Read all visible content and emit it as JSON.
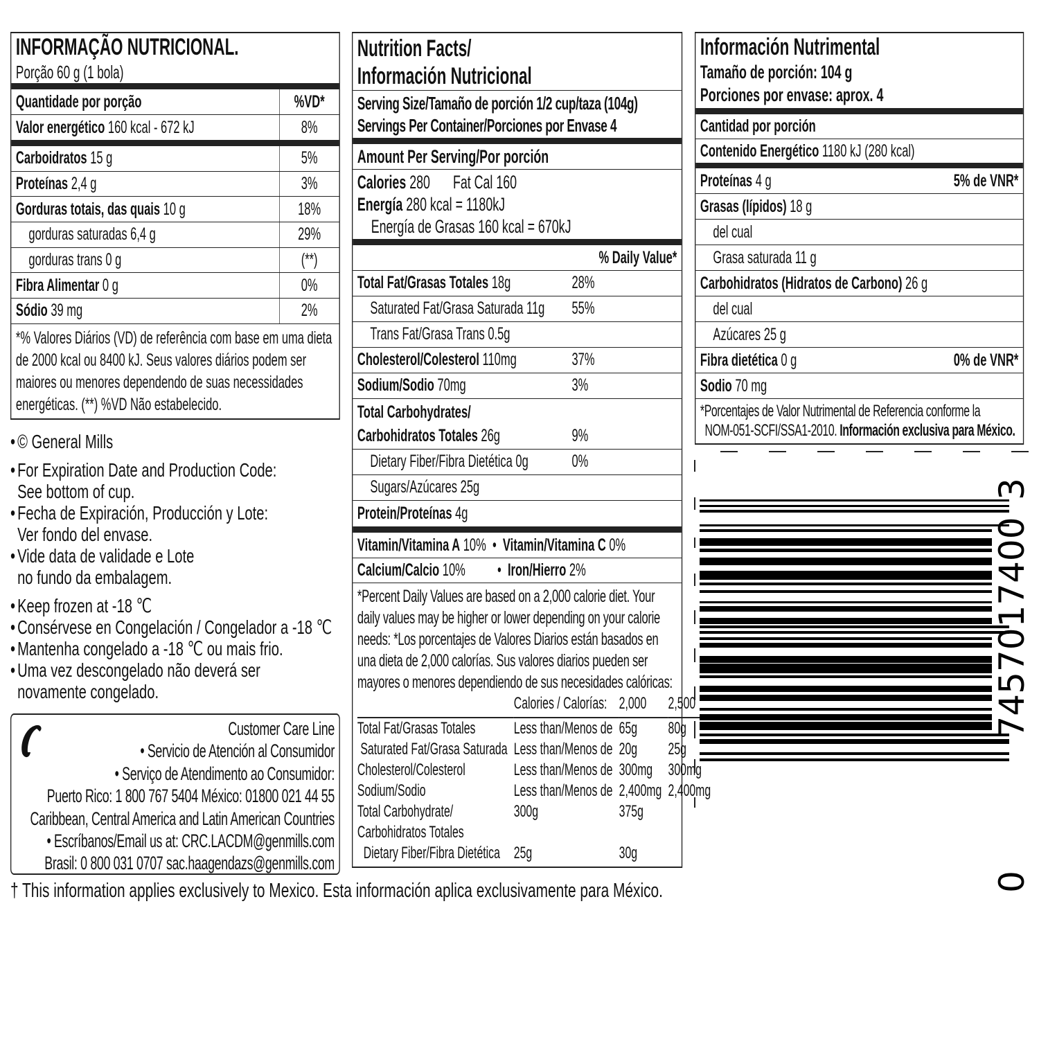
{
  "pt": {
    "title": "INFORMAÇÃO NUTRICIONAL.",
    "portion": "Porção 60 g (1 bola)",
    "header_left": "Quantidade por porção",
    "header_right": "%VD*",
    "energy_label": "Valor energético",
    "energy_value": "160 kcal - 672 kJ",
    "energy_pct": "8%",
    "rows": [
      {
        "label": "Carboidratos",
        "value": "15 g",
        "pct": "5%"
      },
      {
        "label": "Proteínas",
        "value": "2,4 g",
        "pct": "3%"
      },
      {
        "label": "Gorduras totais, das quais",
        "value": "10 g",
        "pct": "18%"
      },
      {
        "label": "gorduras saturadas",
        "value": "6,4 g",
        "pct": "29%"
      },
      {
        "label": "gorduras trans",
        "value": "0 g",
        "pct": "(**)"
      },
      {
        "label": "Fibra Alimentar",
        "value": "0 g",
        "pct": "0%"
      },
      {
        "label": "Sódio",
        "value": "39 mg",
        "pct": "2%"
      }
    ],
    "footnote": "*% Valores Diários (VD) de referência com base em uma dieta de 2000 kcal ou 8400 kJ. Seus valores diários podem ser maiores ou menores dependendo de suas necessidades energéticas. (**) %VD Não estabelecido."
  },
  "bullets": [
    "© General Mills",
    "For Expiration Date and Production Code:\nSee bottom of cup.",
    "Fecha de Expiración, Producción y Lote:\nVer fondo del envase.",
    "Vide data de validade e Lote\nno fundo da embalagem.",
    "Keep frozen at -18 ℃",
    "Consérvese en Congelación / Congelador a -18 ℃",
    "Mantenha congelado a -18 ℃ ou mais frio.",
    "Uma vez descongelado não deverá ser\nnovamente congelado."
  ],
  "care": {
    "icon": "phone-icon",
    "lines": [
      "Customer Care Line",
      "• Servicio de Atención al Consumidor",
      "• Serviço de Atendimento ao Consumidor:",
      "Puerto Rico: 1 800 767 5404 México: 01800 021 44 55",
      "Caribbean, Central America and Latin American Countries",
      "• Escríbanos/Email us at: CRC.LACDM@genmills.com",
      "Brasil: 0 800 031 0707 sac.haagendazs@genmills.com"
    ]
  },
  "footer": "† This information applies exclusively to Mexico. Esta información aplica exclusivamente para México.",
  "us": {
    "title1": "Nutrition Facts/",
    "title2": "Información Nutricional",
    "serving": "Serving Size/Tamaño de porción 1/2 cup/taza (104g)",
    "servings": "Servings Per Container/Porciones por Envase 4",
    "amount": "Amount Per Serving/Por porción",
    "calories_label": "Calories",
    "calories": "280",
    "fatcal": "Fat Cal 160",
    "energia_label": "Energía",
    "energia": "280 kcal = 1180kJ",
    "energia_grasas": "Energía de Grasas 160 kcal = 670kJ",
    "dv_header": "% Daily Value*",
    "rows": [
      {
        "label": "Total Fat/Grasas Totales",
        "value": "18g",
        "pct": "28%",
        "bold": true
      },
      {
        "label": "Saturated Fat/Grasa Saturada",
        "value": "11g",
        "pct": "55%",
        "bold": false
      },
      {
        "label": "Trans Fat/Grasa Trans",
        "value": "0.5g",
        "pct": "",
        "bold": false
      },
      {
        "label": "Cholesterol/Colesterol",
        "value": "110mg",
        "pct": "37%",
        "bold": true
      },
      {
        "label": "Sodium/Sodio",
        "value": "70mg",
        "pct": "3%",
        "bold": true
      },
      {
        "label": "Carbohidratos Totales",
        "value": "26g",
        "pct": "9%",
        "bold": true,
        "pre": "Total Carbohydrates/"
      },
      {
        "label": "Dietary Fiber/Fibra Dietética",
        "value": "0g",
        "pct": "0%",
        "bold": false
      },
      {
        "label": "Sugars/Azúcares",
        "value": "25g",
        "pct": "",
        "bold": false
      },
      {
        "label": "Protein/Proteínas",
        "value": "4g",
        "pct": "",
        "bold": true
      }
    ],
    "vitA_label": "Vitamin/Vitamina A",
    "vitA": "10%",
    "vitC_label": "Vitamin/Vitamina C",
    "vitC": "0%",
    "calcium_label": "Calcium/Calcio",
    "calcium": "10%",
    "iron_label": "Iron/Hierro",
    "iron": "2%",
    "footnote": "*Percent Daily Values are based on a 2,000 calorie diet. Your daily values may be higher or lower depending on your calorie needs: *Los porcentajes de Valores Diarios están basados en una dieta de 2,000 calorías. Sus valores diarios pueden ser mayores o menores dependiendo de sus necesidades calóricas:",
    "table_header": [
      "Calories / Calorías:",
      "2,000",
      "2,500"
    ],
    "table": [
      [
        "Total Fat/Grasas Totales",
        "Less than/Menos de",
        "65g",
        "80g"
      ],
      [
        " Saturated Fat/Grasa Saturada",
        "Less than/Menos de",
        "20g",
        "25g"
      ],
      [
        "Cholesterol/Colesterol",
        "Less than/Menos de",
        "300mg",
        "300mg"
      ],
      [
        "Sodium/Sodio",
        "Less than/Menos de",
        "2,400mg",
        "2,400mg"
      ],
      [
        "Total Carbohydrate/",
        "300g",
        "375g",
        ""
      ],
      [
        "Carbohidratos Totales",
        "",
        "",
        ""
      ],
      [
        "  Dietary Fiber/Fibra Dietética",
        "25g",
        "30g",
        ""
      ]
    ]
  },
  "mx": {
    "title": "Información Nutrimental",
    "size": "Tamaño de porción: 104 g",
    "servings": "Porciones por envase: aprox. 4",
    "cantidad": "Cantidad por porción",
    "energy_label": "Contenido Energético",
    "energy": "1180 kJ (280 kcal)",
    "rows": [
      {
        "label": "Proteínas",
        "value": "4 g",
        "right": "5% de VNR*",
        "bold": true
      },
      {
        "label": "Grasas (lípidos)",
        "value": "18 g",
        "right": "",
        "bold": true
      },
      {
        "label": "del cual",
        "value": "",
        "right": "",
        "bold": false
      },
      {
        "label": "Grasa saturada",
        "value": "11 g",
        "right": "",
        "bold": false
      },
      {
        "label": "Carbohidratos (Hidratos de Carbono)",
        "value": "26 g",
        "right": "",
        "bold": true
      },
      {
        "label": "del cual",
        "value": "",
        "right": "",
        "bold": false
      },
      {
        "label": "Azúcares",
        "value": "25 g",
        "right": "",
        "bold": false
      },
      {
        "label": "Fibra dietética",
        "value": "0 g",
        "right": "0% de VNR*",
        "bold": true
      },
      {
        "label": "Sodio",
        "value": "70 mg",
        "right": "",
        "bold": true
      }
    ],
    "footnote1": "*Porcentajes de Valor Nutrimental de Referencia conforme la",
    "footnote2": "NOM-051-SCFI/SSA1-2010.",
    "footnote3": "Información exclusiva para México."
  },
  "barcode": {
    "first": "0",
    "left": "74570",
    "right": "17400",
    "check": "3"
  }
}
